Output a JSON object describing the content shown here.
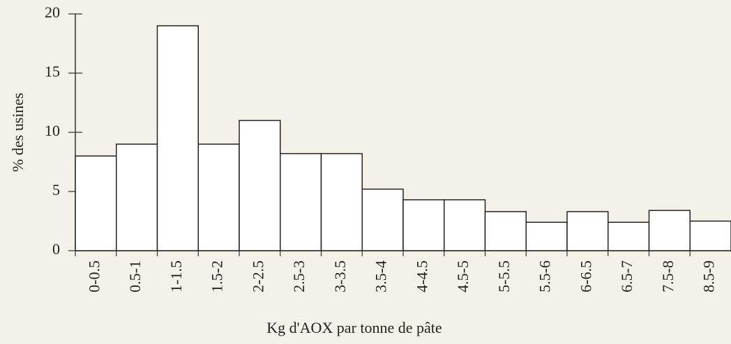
{
  "chart_data": {
    "type": "bar",
    "xlabel": "Kg d'AOX par tonne de pâte",
    "ylabel": "% des usines",
    "categories": [
      "0-0.5",
      "0.5-1",
      "1-1.5",
      "1.5-2",
      "2-2.5",
      "2.5-3",
      "3-3.5",
      "3.5-4",
      "4-4.5",
      "4.5-5",
      "5-5.5",
      "5.5-6",
      "6-6.5",
      "6.5-7",
      "7.5-8",
      "8.5-9"
    ],
    "values": [
      8,
      9,
      19,
      9,
      11,
      8.2,
      8.2,
      5.2,
      4.3,
      4.3,
      3.3,
      2.4,
      3.3,
      2.4,
      3.4,
      2.5
    ],
    "color": "#ffffff",
    "ylim": [
      0,
      20
    ],
    "yticks": [
      0,
      5,
      10,
      15,
      20
    ],
    "grid": false
  }
}
